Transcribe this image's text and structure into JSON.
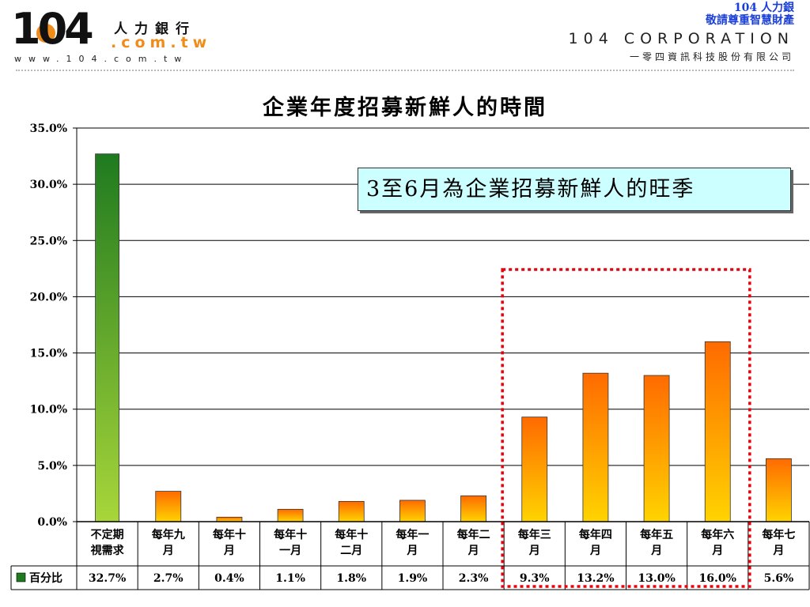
{
  "header": {
    "logo_number": "104",
    "logo_chinese": "人力銀行",
    "logo_domain": ".com.tw",
    "logo_url": "www.104.com.tw",
    "note_line1": "104 人力銀",
    "note_line2": "敬請尊重智慧財產",
    "corp_name": "104 CORPORATION",
    "corp_sub": "一零四資訊科技股份有限公司"
  },
  "callout": {
    "text": "3至6月為企業招募新鮮人的旺季"
  },
  "colors": {
    "green_top": "#1f7a1f",
    "green_bottom": "#a8d63a",
    "orange_top": "#ff6a00",
    "orange_bottom": "#ffd400",
    "highlight": "#e8000b",
    "callout_bg": "#ccffff"
  },
  "chart_data": {
    "type": "bar",
    "title": "企業年度招募新鮮人的時間",
    "categories": [
      [
        "不定期",
        "視需求"
      ],
      [
        "每年九",
        "月"
      ],
      [
        "每年十",
        "月"
      ],
      [
        "每年十",
        "一月"
      ],
      [
        "每年十",
        "二月"
      ],
      [
        "每年一",
        "月"
      ],
      [
        "每年二",
        "月"
      ],
      [
        "每年三",
        "月"
      ],
      [
        "每年四",
        "月"
      ],
      [
        "每年五",
        "月"
      ],
      [
        "每年六",
        "月"
      ],
      [
        "每年七",
        "月"
      ]
    ],
    "series": [
      {
        "name": "百分比",
        "values": [
          32.7,
          2.7,
          0.4,
          1.1,
          1.8,
          1.9,
          2.3,
          9.3,
          13.2,
          13.0,
          16.0,
          5.6
        ],
        "labels": [
          "32.7%",
          "2.7%",
          "0.4%",
          "1.1%",
          "1.8%",
          "1.9%",
          "2.3%",
          "9.3%",
          "13.2%",
          "13.0%",
          "16.0%",
          "5.6%"
        ]
      }
    ],
    "yticks": [
      "0.0%",
      "5.0%",
      "10.0%",
      "15.0%",
      "20.0%",
      "25.0%",
      "30.0%",
      "35.0%"
    ],
    "ylim": [
      0,
      35
    ],
    "grid": true,
    "legend": "data-table",
    "highlight_categories": [
      7,
      8,
      9,
      10
    ]
  }
}
